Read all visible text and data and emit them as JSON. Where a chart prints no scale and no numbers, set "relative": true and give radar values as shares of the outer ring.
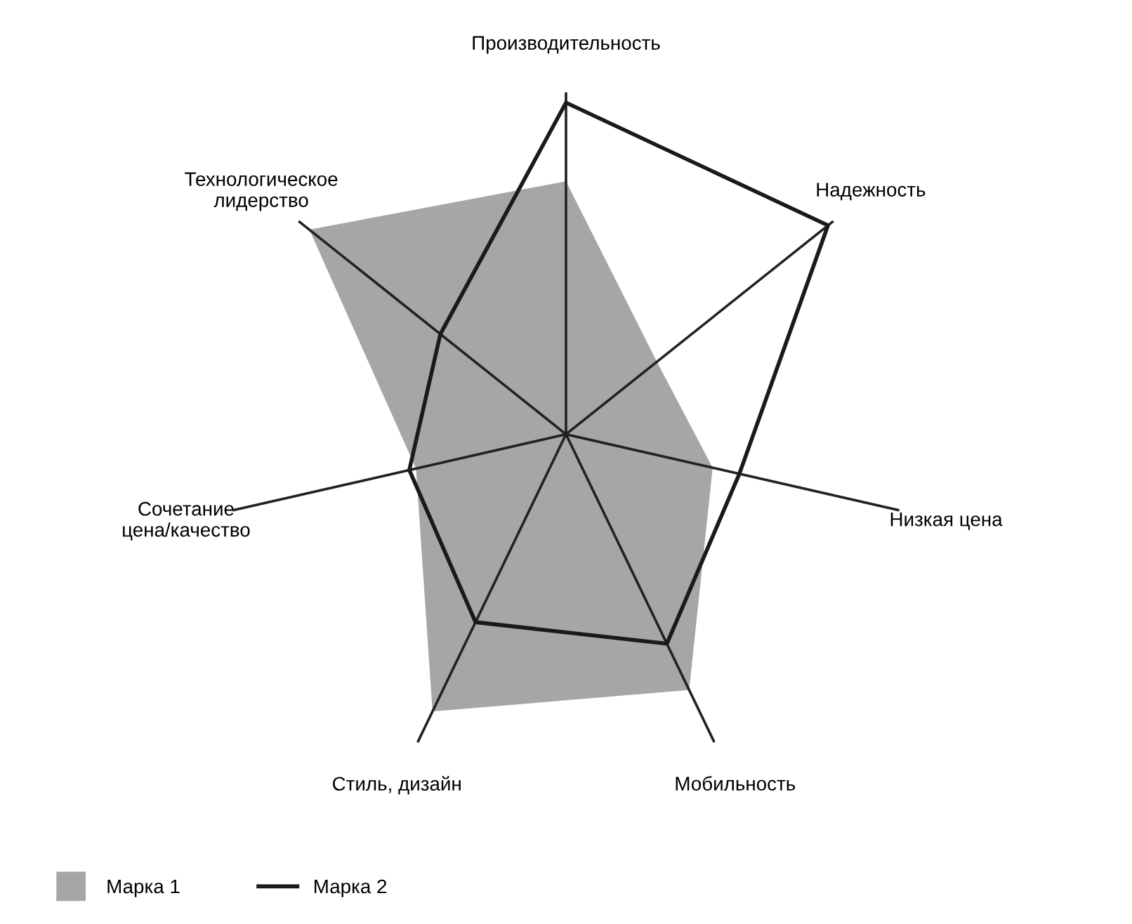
{
  "chart_data": {
    "type": "radar",
    "relative": true,
    "categories": [
      "Производительность",
      "Надежность",
      "Низкая цена",
      "Мобильность",
      "Стиль, дизайн",
      "Сочетание цена/качество",
      "Технологическое лидерство"
    ],
    "series": [
      {
        "name": "Марка 1",
        "type": "area",
        "color": "#a6a6a6",
        "values": [
          0.74,
          0.34,
          0.44,
          0.83,
          0.9,
          0.45,
          0.96
        ]
      },
      {
        "name": "Марка 2",
        "color": "#1a1a1a",
        "values": [
          0.97,
          0.98,
          0.52,
          0.68,
          0.61,
          0.47,
          0.47
        ]
      }
    ],
    "legend": "bottom left",
    "marker": "none",
    "line_style": "solid"
  }
}
